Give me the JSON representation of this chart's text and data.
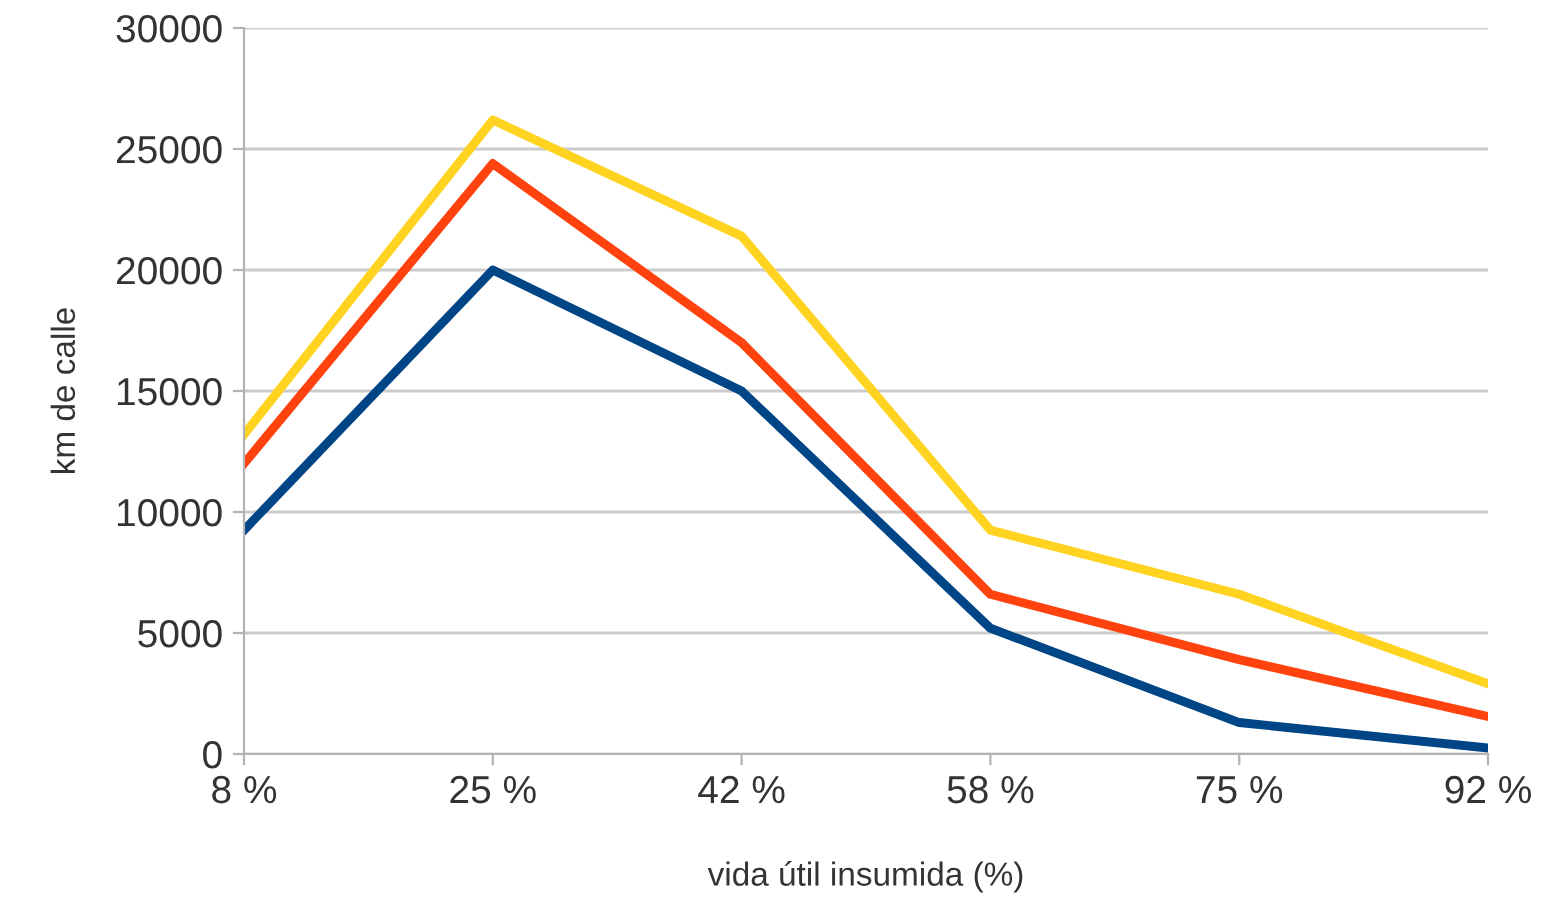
{
  "chart_data": {
    "type": "line",
    "xlabel": "vida útil insumida (%)",
    "ylabel": "km de calle",
    "categories": [
      "8 %",
      "25 %",
      "42 %",
      "58 %",
      "75 %",
      "92 %"
    ],
    "series": [
      {
        "color": "#004586",
        "values": [
          9250,
          20000,
          15000,
          5200,
          1300,
          250
        ]
      },
      {
        "color": "#ff420e",
        "values": [
          12000,
          24400,
          17000,
          6600,
          3900,
          1550
        ]
      },
      {
        "color": "#ffd320",
        "values": [
          13200,
          26200,
          21400,
          9250,
          6600,
          2900
        ]
      }
    ],
    "ylim": [
      0,
      30000
    ],
    "yticks": [
      0,
      5000,
      10000,
      15000,
      20000,
      25000,
      30000
    ],
    "grid": "y",
    "legend": false,
    "marker": "none",
    "line_style": "solid"
  }
}
